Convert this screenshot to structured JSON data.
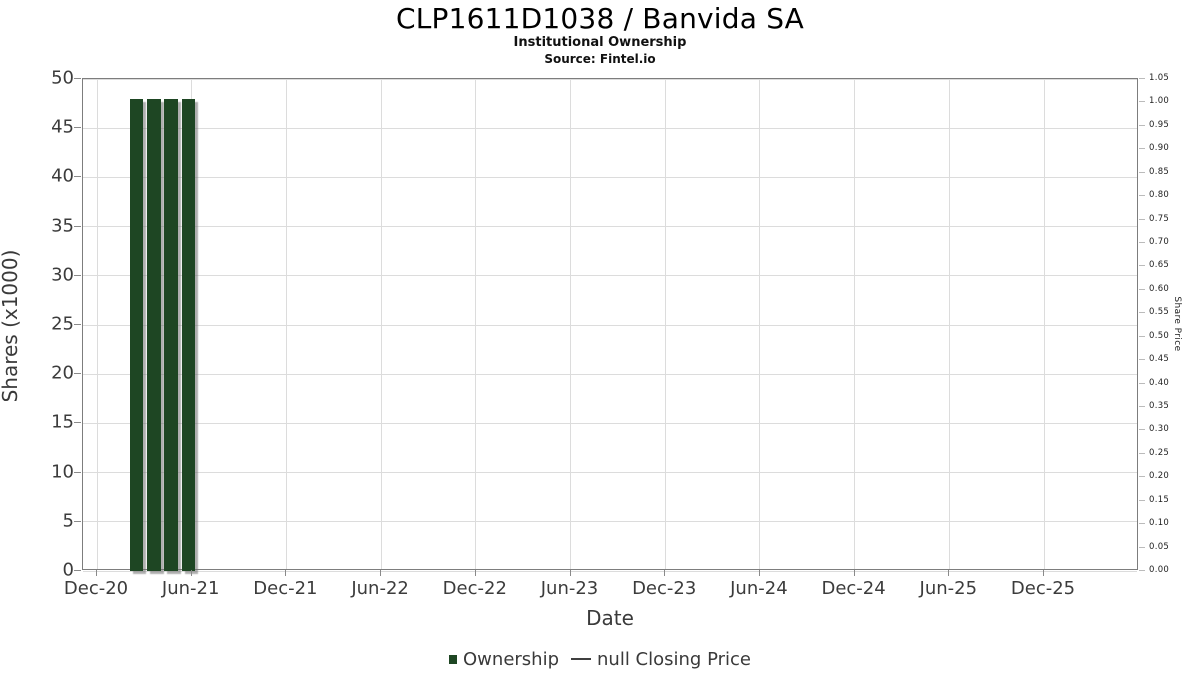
{
  "title": "CLP1611D1038 / Banvida SA",
  "subtitle": "Institutional Ownership",
  "source": "Source: Fintel.io",
  "colors": {
    "bar": "#1e4623",
    "grid": "#dcdcdc",
    "frame": "#7d7d7d",
    "tick_text": "#3c3c3c",
    "legend_line": "#3f3f3f"
  },
  "chart_data": {
    "type": "bar",
    "title": "CLP1611D1038 / Banvida SA",
    "subtitle": "Institutional Ownership",
    "source": "Source: Fintel.io",
    "xlabel": "Date",
    "ylabel_left": "Shares (x1000)",
    "ylabel_right": "Share Price",
    "grid": true,
    "legend_position": "bottom",
    "x_ticks": [
      "Dec-20",
      "Jun-21",
      "Dec-21",
      "Jun-22",
      "Dec-22",
      "Jun-23",
      "Dec-23",
      "Jun-24",
      "Dec-24",
      "Jun-25",
      "Dec-25"
    ],
    "x_tick_spacing_months": 6,
    "y_left_ticks": [
      "0",
      "5",
      "10",
      "15",
      "20",
      "25",
      "30",
      "35",
      "40",
      "45",
      "50"
    ],
    "y_left_lim": [
      0,
      50
    ],
    "y_right_ticks": [
      "0.00",
      "0.05",
      "0.10",
      "0.15",
      "0.20",
      "0.25",
      "0.30",
      "0.35",
      "0.40",
      "0.45",
      "0.50",
      "0.55",
      "0.60",
      "0.65",
      "0.70",
      "0.75",
      "0.80",
      "0.85",
      "0.90",
      "0.95",
      "1.00",
      "1.05"
    ],
    "y_right_lim": [
      0,
      1.05
    ],
    "series": [
      {
        "name": "Ownership",
        "type": "bar",
        "axis": "left",
        "color": "#1e4623",
        "x_labels": [
          "Mar-21",
          "Apr-21",
          "May-21",
          "Jun-21"
        ],
        "x_month_offsets": [
          2.5,
          3.6,
          4.7,
          5.8
        ],
        "values": [
          48,
          48,
          48,
          48
        ],
        "values_unit": "thousand shares"
      },
      {
        "name": "null Closing Price",
        "type": "line",
        "axis": "right",
        "color": "#3f3f3f",
        "x_labels": [],
        "values": []
      }
    ]
  },
  "legend": {
    "items": [
      {
        "label": "Ownership",
        "marker": "square",
        "color": "#1e4623"
      },
      {
        "label": "null Closing Price",
        "marker": "line",
        "color": "#3f3f3f"
      }
    ]
  }
}
